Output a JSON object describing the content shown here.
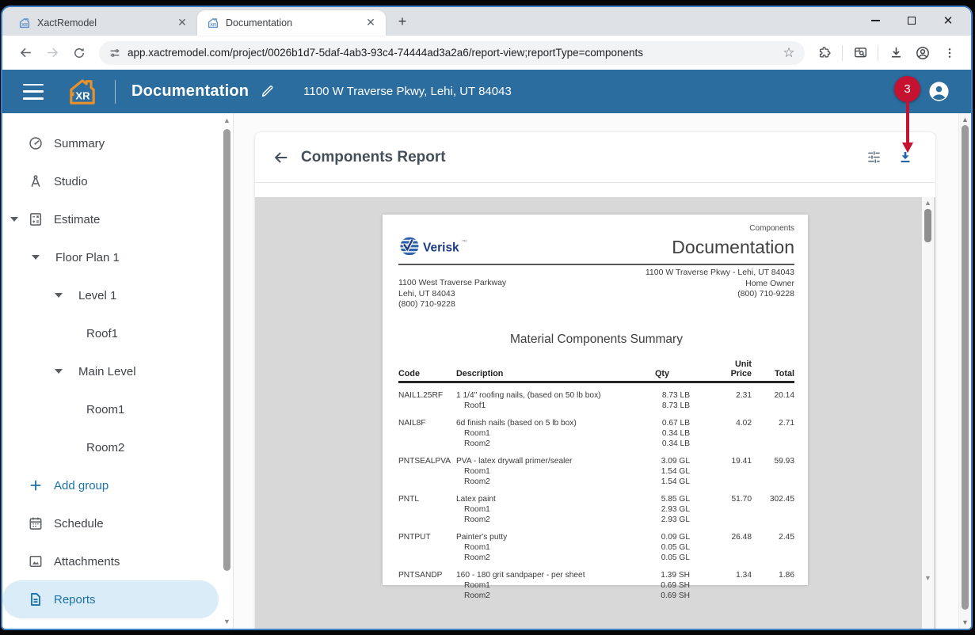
{
  "colors": {
    "header_blue": "#2B6D9E",
    "accent_blue": "#1C72A8",
    "download_blue": "#1F63AD",
    "annotation_red": "#C41230",
    "logo_orange": "#E8912D"
  },
  "browser": {
    "tabs": [
      {
        "title": "XactRemodel",
        "active": false
      },
      {
        "title": "Documentation",
        "active": true
      }
    ],
    "new_tab_label": "+",
    "url": "app.xactremodel.com/project/0026b1d7-5daf-4ab3-93c4-74444ad3a2a6/report-view;reportType=components"
  },
  "app_header": {
    "title": "Documentation",
    "address": "1100 W Traverse Pkwy, Lehi, UT 84043"
  },
  "annotation": {
    "step": "3"
  },
  "sidebar": {
    "items": [
      {
        "label": "Summary",
        "icon": "gauge",
        "indent": 0
      },
      {
        "label": "Studio",
        "icon": "compass",
        "indent": 0
      },
      {
        "label": "Estimate",
        "icon": "calculator",
        "indent": 0,
        "expander": true
      },
      {
        "label": "Floor Plan 1",
        "indent": 1,
        "expander": true
      },
      {
        "label": "Level 1",
        "indent": 2,
        "expander": true
      },
      {
        "label": "Roof1",
        "indent": 3
      },
      {
        "label": "Main Level",
        "indent": 2,
        "expander": true
      },
      {
        "label": "Room1",
        "indent": 3
      },
      {
        "label": "Room2",
        "indent": 3
      },
      {
        "label": "Add group",
        "icon": "plus",
        "indent": 0,
        "accent": true
      },
      {
        "label": "Schedule",
        "icon": "calendar",
        "indent": 0
      },
      {
        "label": "Attachments",
        "icon": "image",
        "indent": 0
      },
      {
        "label": "Reports",
        "icon": "document",
        "indent": 0,
        "selected": true
      }
    ]
  },
  "report_view": {
    "title": "Components Report"
  },
  "report": {
    "corner_label": "Components",
    "brand": "Verisk",
    "title": "Documentation",
    "company_lines": [
      "1100 West Traverse Parkway",
      "Lehi, UT 84043",
      "(800) 710-9228"
    ],
    "client_lines": [
      "1100 W Traverse Pkwy - Lehi, UT 84043",
      "Home Owner",
      "(800) 710-9228"
    ],
    "section_title": "Material Components Summary",
    "table": {
      "headers": {
        "code": "Code",
        "description": "Description",
        "qty": "Qty",
        "unit_line1": "Unit",
        "unit_line2": "Price",
        "total": "Total"
      },
      "rows": [
        {
          "code": "NAIL1.25RF",
          "desc": "1 1/4\" roofing nails, (based on 50 lb box)",
          "qty": "8.73 LB",
          "unit": "2.31",
          "total": "20.14",
          "lines": [
            {
              "room": "Roof1",
              "qty": "8.73 LB"
            }
          ]
        },
        {
          "code": "NAIL8F",
          "desc": "6d finish nails (based on 5 lb box)",
          "qty": "0.67 LB",
          "unit": "4.02",
          "total": "2.71",
          "lines": [
            {
              "room": "Room1",
              "qty": "0.34 LB"
            },
            {
              "room": "Room2",
              "qty": "0.34 LB"
            }
          ]
        },
        {
          "code": "PNTSEALPVA",
          "desc": "PVA - latex drywall primer/sealer",
          "qty": "3.09 GL",
          "unit": "19.41",
          "total": "59.93",
          "lines": [
            {
              "room": "Room1",
              "qty": "1.54 GL"
            },
            {
              "room": "Room2",
              "qty": "1.54 GL"
            }
          ]
        },
        {
          "code": "PNTL",
          "desc": "Latex paint",
          "qty": "5.85 GL",
          "unit": "51.70",
          "total": "302.45",
          "lines": [
            {
              "room": "Room1",
              "qty": "2.93 GL"
            },
            {
              "room": "Room2",
              "qty": "2.93 GL"
            }
          ]
        },
        {
          "code": "PNTPUT",
          "desc": "Painter's putty",
          "qty": "0.09 GL",
          "unit": "26.48",
          "total": "2.45",
          "lines": [
            {
              "room": "Room1",
              "qty": "0.05 GL"
            },
            {
              "room": "Room2",
              "qty": "0.05 GL"
            }
          ]
        },
        {
          "code": "PNTSANDP",
          "desc": "160 - 180 grit sandpaper - per sheet",
          "qty": "1.39 SH",
          "unit": "1.34",
          "total": "1.86",
          "lines": [
            {
              "room": "Room1",
              "qty": "0.69 SH"
            },
            {
              "room": "Room2",
              "qty": "0.69 SH"
            }
          ]
        }
      ]
    }
  }
}
